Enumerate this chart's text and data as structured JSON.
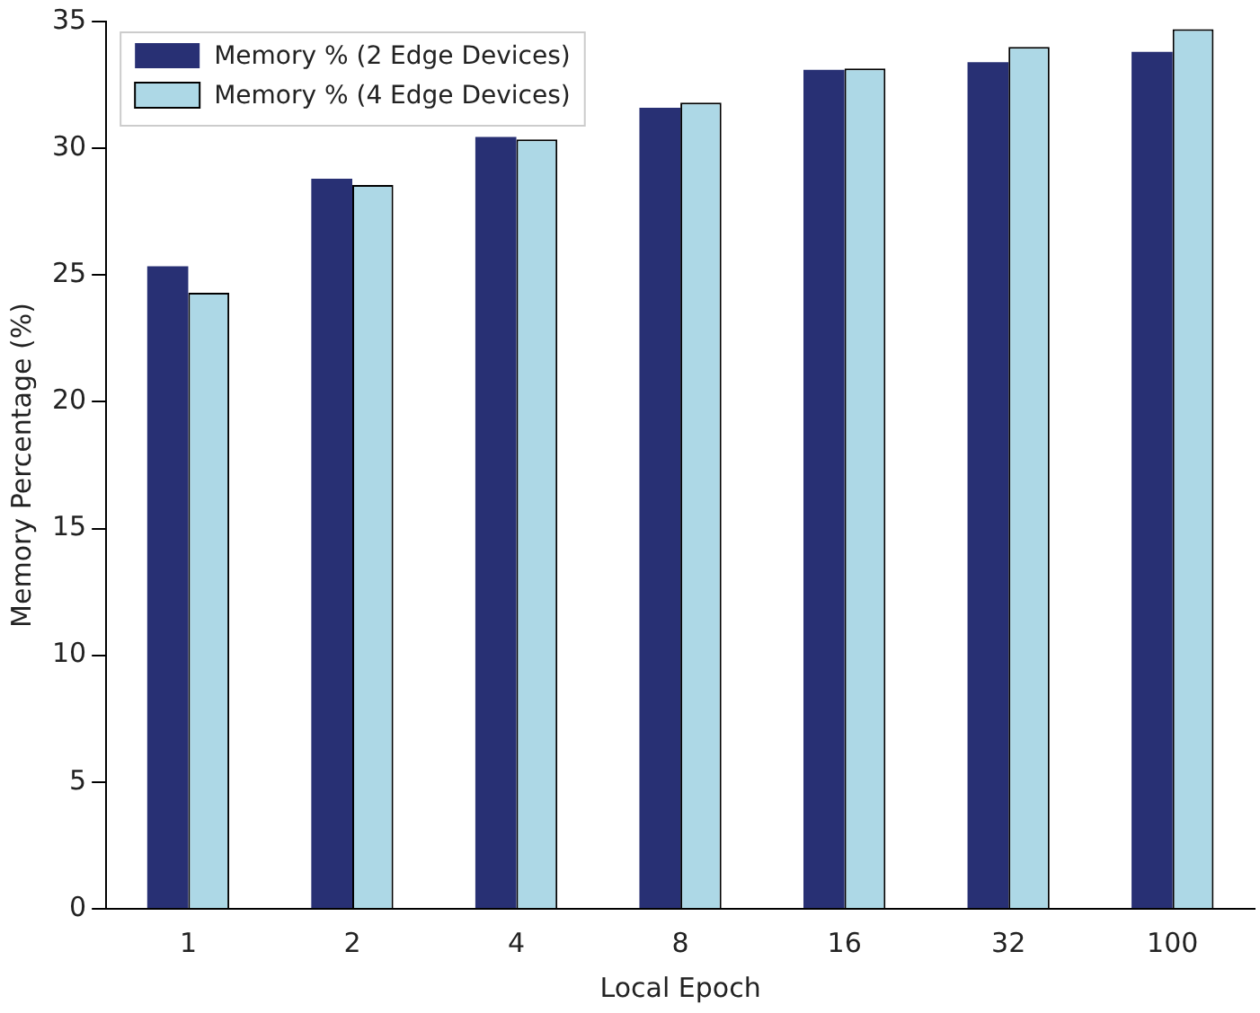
{
  "chart_data": {
    "type": "bar",
    "xlabel": "Local Epoch",
    "ylabel": "Memory Percentage (%)",
    "categories": [
      "1",
      "2",
      "4",
      "8",
      "16",
      "32",
      "100"
    ],
    "series": [
      {
        "name": "Memory % (2 Edge Devices)",
        "color": "#283074",
        "values": [
          25.35,
          28.8,
          30.45,
          31.6,
          33.1,
          33.4,
          33.8
        ]
      },
      {
        "name": "Memory % (4 Edge Devices)",
        "color": "#add8e6",
        "values": [
          24.3,
          28.55,
          30.35,
          31.8,
          33.15,
          34.0,
          34.7
        ]
      }
    ],
    "ylim": [
      0,
      35
    ],
    "yticks": [
      0,
      5,
      10,
      15,
      20,
      25,
      30,
      35
    ],
    "legend": "top left",
    "grid": false
  }
}
